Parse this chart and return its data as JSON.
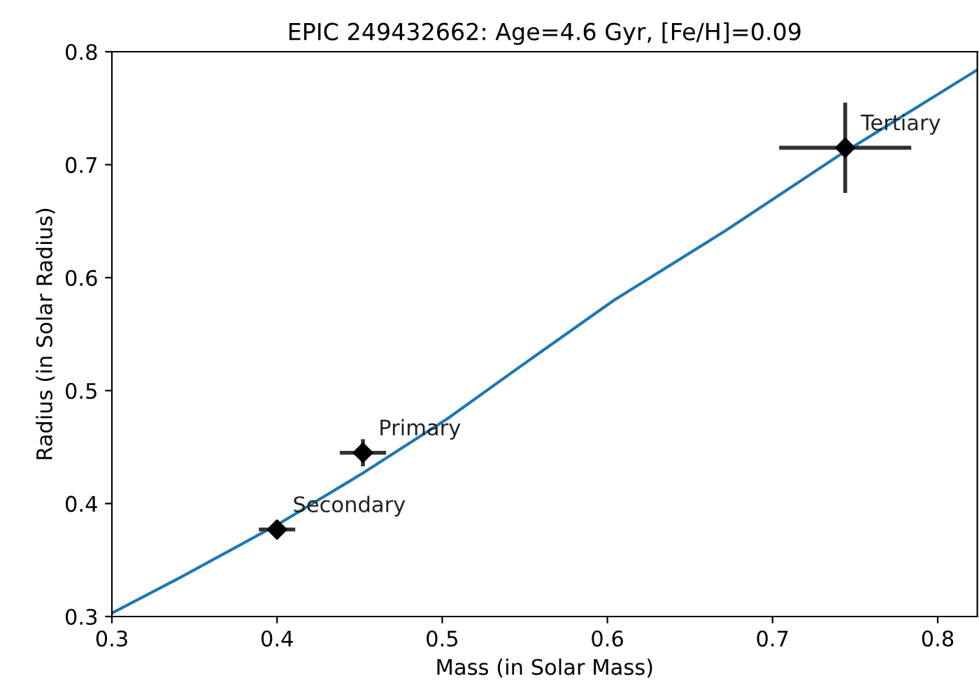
{
  "chart_data": {
    "type": "scatter",
    "title": "EPIC 249432662: Age=4.6 Gyr, [Fe/H]=0.09",
    "xlabel": "Mass (in Solar Mass)",
    "ylabel": "Radius (in Solar Radius)",
    "xlim": [
      0.3,
      0.824
    ],
    "ylim": [
      0.3,
      0.8
    ],
    "xticks": [
      0.3,
      0.4,
      0.5,
      0.6,
      0.7,
      0.8
    ],
    "yticks": [
      0.3,
      0.4,
      0.5,
      0.6,
      0.7,
      0.8
    ],
    "grid": false,
    "series": [
      {
        "type": "line",
        "color": "#1f77b4",
        "marker": "none",
        "line_style": "solid",
        "x": [
          0.3,
          0.342,
          0.401,
          0.452,
          0.503,
          0.545,
          0.604,
          0.672,
          0.739,
          0.824
        ],
        "values": [
          0.303,
          0.335,
          0.382,
          0.427,
          0.475,
          0.519,
          0.58,
          0.642,
          0.707,
          0.784
        ]
      },
      {
        "color": "#000000",
        "marker": "diamond",
        "x": [
          0.452,
          0.4,
          0.744
        ],
        "values": [
          0.445,
          0.377,
          0.715
        ],
        "xerrors": [
          0.014,
          0.011,
          0.04
        ],
        "errors": [
          0.012,
          0.008,
          0.04
        ]
      }
    ],
    "annotations": [
      {
        "text": "Primary",
        "x": 0.452,
        "y": 0.445
      },
      {
        "text": "Secondary",
        "x": 0.4,
        "y": 0.377
      },
      {
        "text": "Tertiary",
        "x": 0.744,
        "y": 0.715
      }
    ]
  }
}
